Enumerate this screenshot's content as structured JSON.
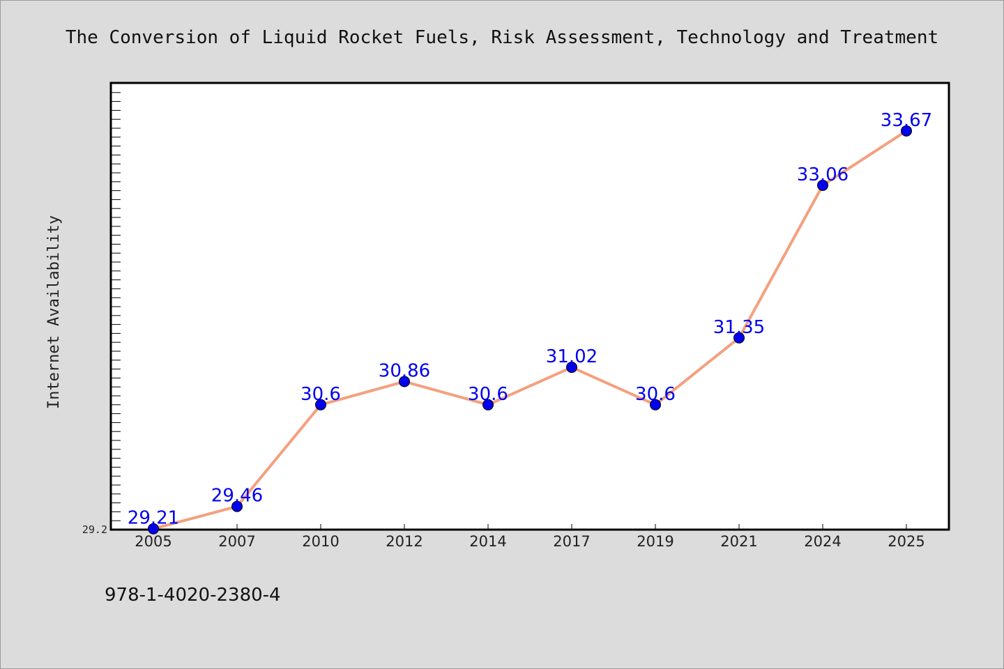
{
  "chart_data": {
    "type": "line",
    "title": "The Conversion of Liquid Rocket Fuels, Risk Assessment, Technology and Treatment",
    "xlabel": "",
    "ylabel": "Internet Availability",
    "categories": [
      "2005",
      "2007",
      "2010",
      "2012",
      "2014",
      "2017",
      "2019",
      "2021",
      "2024",
      "2025"
    ],
    "series": [
      {
        "values": [
          29.21,
          29.46,
          30.6,
          30.86,
          30.6,
          31.02,
          30.6,
          31.35,
          33.06,
          33.67
        ],
        "labels": [
          "29.21",
          "29.46",
          "30.6",
          "30.86",
          "30.6",
          "31.02",
          "30.6",
          "31.35",
          "33.06",
          "33.67"
        ]
      }
    ],
    "ylim": [
      29.2,
      34.2
    ],
    "ytick_labels": [
      "29.2"
    ],
    "grid": false,
    "legend": "none",
    "line_color": "#f4a07e",
    "marker_color": "#0000ee",
    "label_color": "#0000ee"
  },
  "footer": {
    "isbn": "978-1-4020-2380-4"
  }
}
